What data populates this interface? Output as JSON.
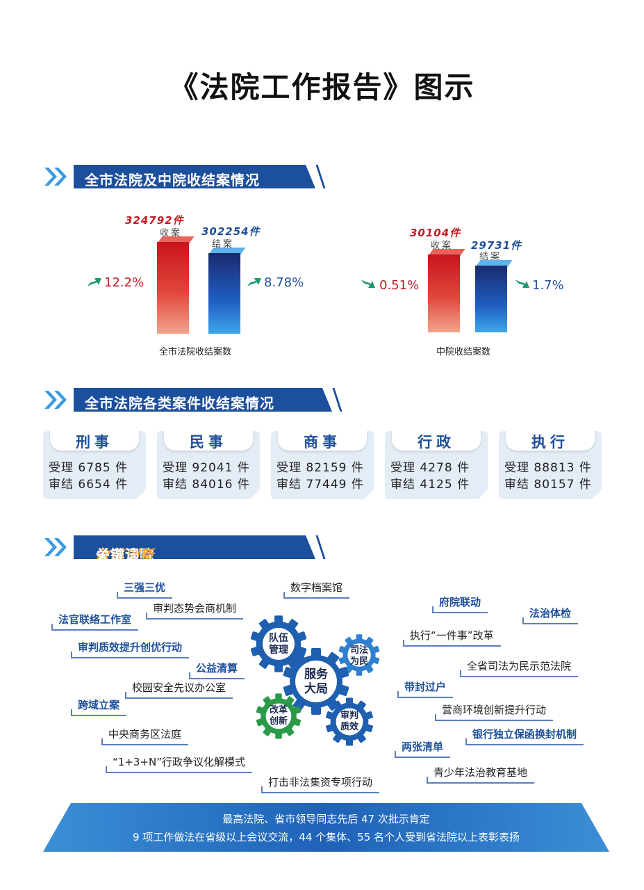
{
  "title": "《法院工作报告》图示",
  "section1": {
    "header": "全市法院及中院收结案情况",
    "city": {
      "caption": "全市法院收结案数",
      "received": {
        "value": "324792件",
        "label": "收案",
        "change": "12.2%",
        "trend": "up"
      },
      "closed": {
        "value": "302254件",
        "label": "结案",
        "change": "8.78%",
        "trend": "up"
      }
    },
    "intermediate": {
      "caption": "中院收结案数",
      "received": {
        "value": "30104件",
        "label": "收案",
        "change": "0.51%",
        "trend": "down"
      },
      "closed": {
        "value": "29731件",
        "label": "结案",
        "change": "1.7%",
        "trend": "down"
      }
    }
  },
  "chart_data": [
    {
      "type": "bar",
      "title": "",
      "xlabel": "全市法院收结案数",
      "categories": [
        "收案",
        "结案"
      ],
      "values": [
        324792,
        302254
      ]
    },
    {
      "type": "bar",
      "title": "",
      "xlabel": "中院收结案数",
      "categories": [
        "收案",
        "结案"
      ],
      "values": [
        30104,
        29731
      ]
    }
  ],
  "section2": {
    "header": "全市法院各类案件收结案情况",
    "cards": [
      {
        "title": "刑事",
        "received": "受理 6785 件",
        "closed": "审结 6654 件"
      },
      {
        "title": "民事",
        "received": "受理 92041 件",
        "closed": "审结 84016 件"
      },
      {
        "title": "商事",
        "received": "受理 82159 件",
        "closed": "审结 77449 件"
      },
      {
        "title": "行政",
        "received": "受理 4278 件",
        "closed": "审结 4125 件"
      },
      {
        "title": "执行",
        "received": "受理 88813 件",
        "closed": "审结 80157 件"
      }
    ]
  },
  "section3": {
    "header_a": "全市法院",
    "header_b": "改革创新",
    "header_c": "关键词",
    "gears": {
      "center": "服务\n大局",
      "g1": "队伍\n管理",
      "g2": "司法\n为民",
      "g3": "改革\n创新",
      "g4": "审判\n质效"
    },
    "keywords": [
      "三强三优",
      "审判态势会商机制",
      "法官联络工作室",
      "审判质效提升创优行动",
      "公益清算",
      "校园安全先议办公室",
      "跨域立案",
      "中央商务区法庭",
      "“1+3+N”行政争议化解模式",
      "数字档案馆",
      "打击非法集资专项行动",
      "府院联动",
      "法治体检",
      "执行“一件事”改革",
      "全省司法为民示范法院",
      "带封过户",
      "营商环境创新提升行动",
      "银行独立保函换封机制",
      "两张清单",
      "青少年法治教育基地"
    ]
  },
  "banner": {
    "line1": "最高法院、省市领导同志先后 47 次批示肯定",
    "line2": "9 项工作做法在省级以上会议交流，44 个集体、55 名个人受到省法院以上表彰表扬"
  },
  "colors": {
    "red": "#c21a22",
    "blue": "#1d4f9b",
    "green_arrow": "#1e9a6e"
  }
}
